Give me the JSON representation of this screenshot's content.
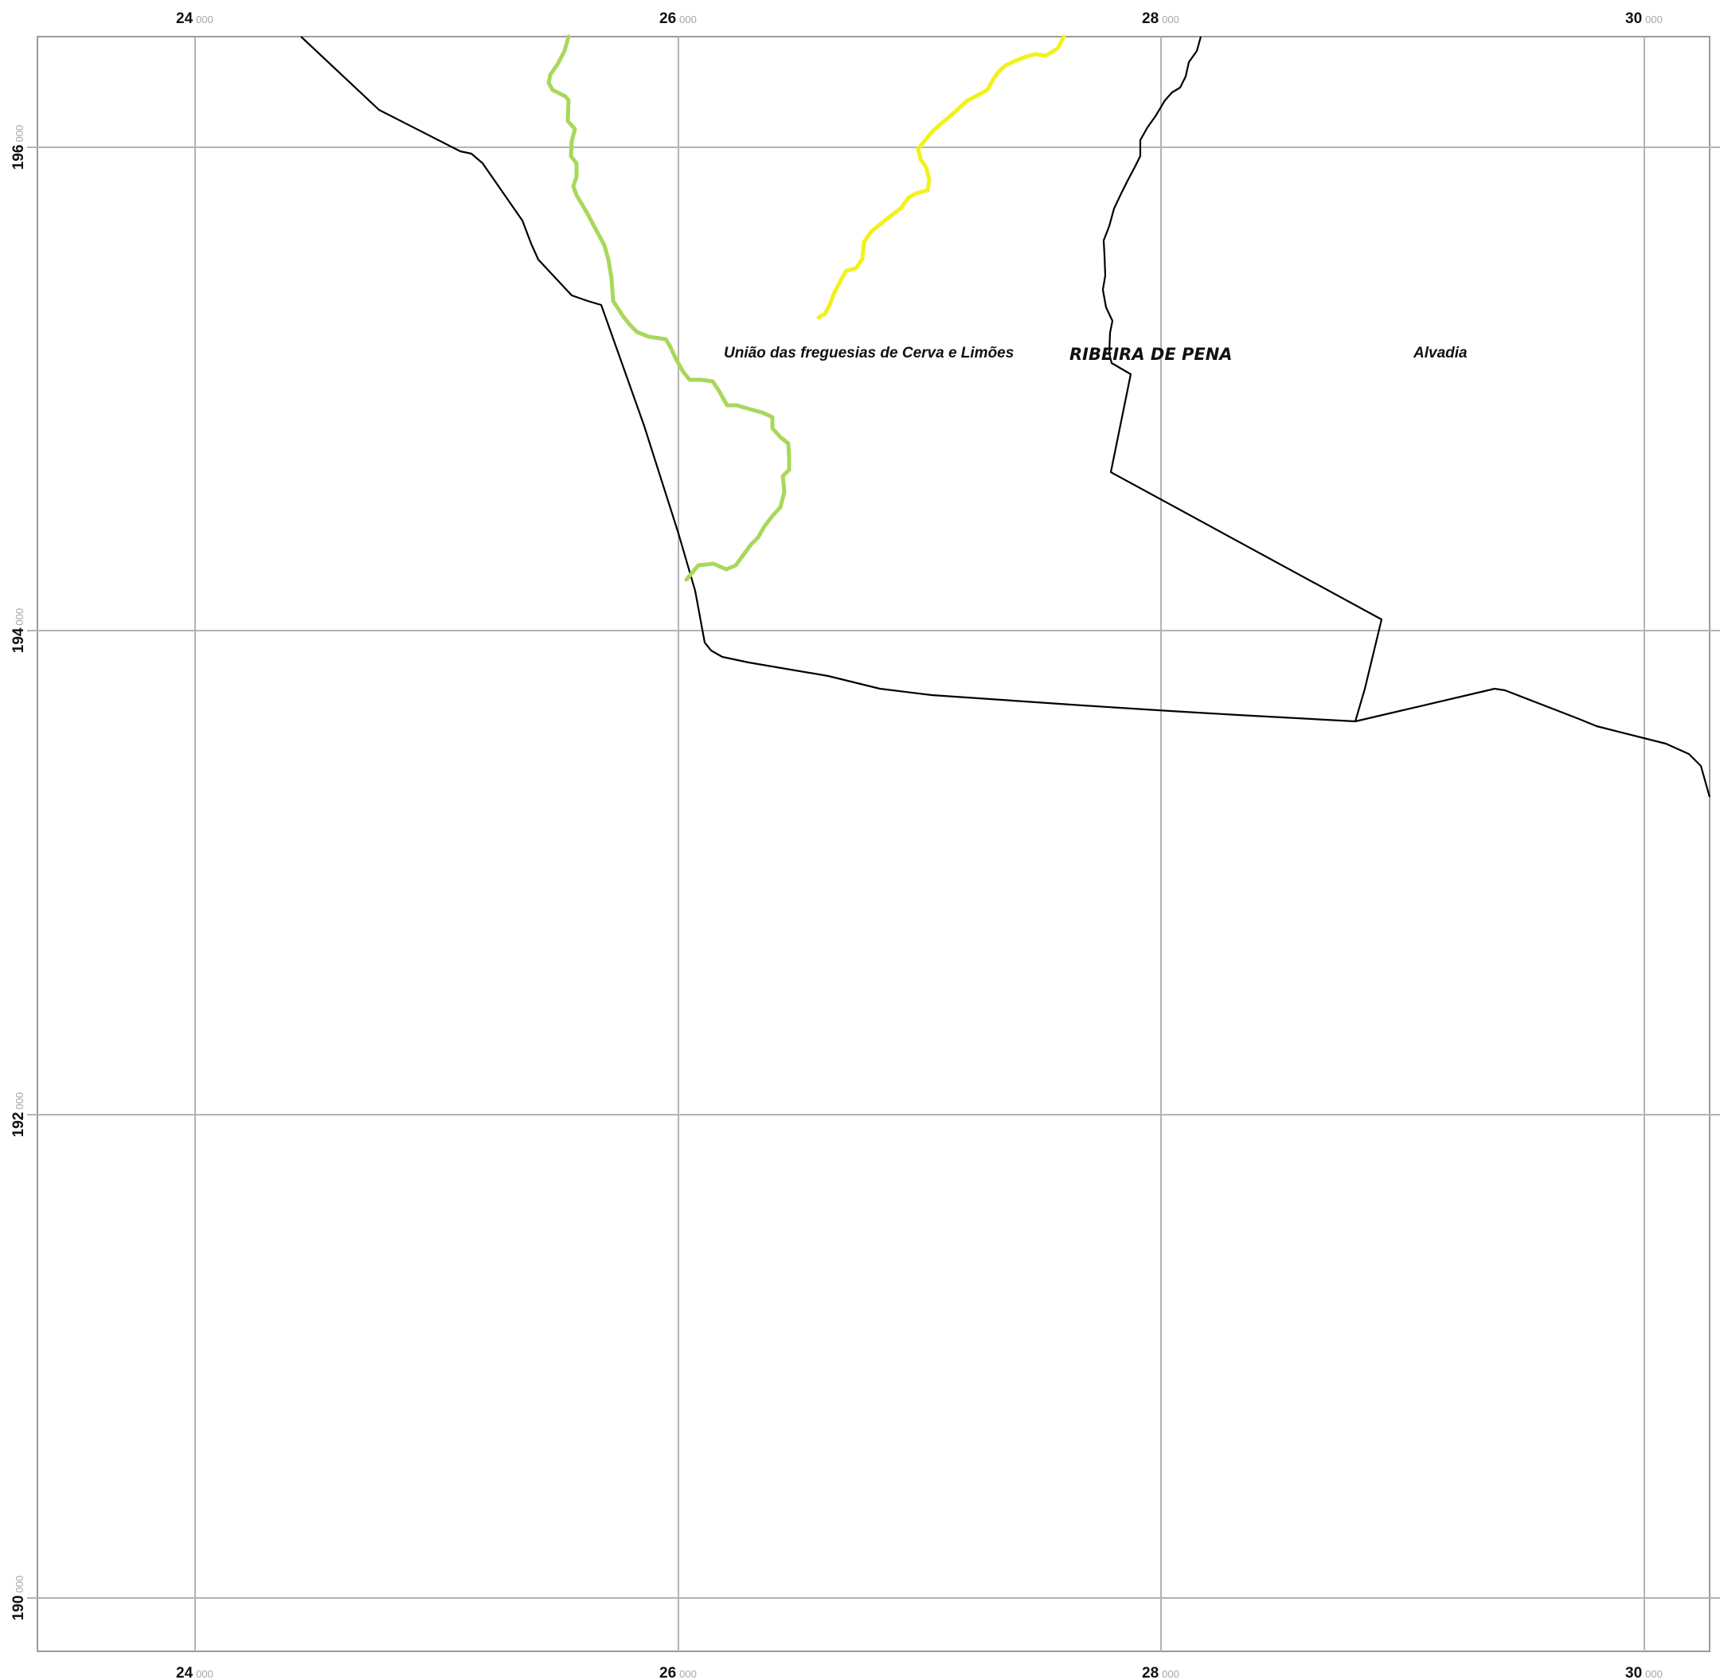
{
  "map": {
    "x_ticks": [
      {
        "value": 24000,
        "major": "24",
        "minor": "000"
      },
      {
        "value": 26000,
        "major": "26",
        "minor": "000"
      },
      {
        "value": 28000,
        "major": "28",
        "minor": "000"
      },
      {
        "value": 30000,
        "major": "30",
        "minor": "000"
      }
    ],
    "y_ticks": [
      {
        "value": 196000,
        "major": "196",
        "minor": "000"
      },
      {
        "value": 194000,
        "major": "194",
        "minor": "000"
      },
      {
        "value": 192000,
        "major": "192",
        "minor": "000"
      },
      {
        "value": 190000,
        "major": "190",
        "minor": "000"
      }
    ],
    "labels": {
      "parish_cerva": "União das freguesias de Cerva e Limões",
      "municipality": "RIBEIRA DE PENA",
      "parish_alvadia": "Alvadia"
    },
    "colors": {
      "grid": "#b3b3b3",
      "frame": "#9a9a9a",
      "boundary": "#000000",
      "green_line": "#a8d85a",
      "yellow_line": "#f2f21a"
    }
  }
}
